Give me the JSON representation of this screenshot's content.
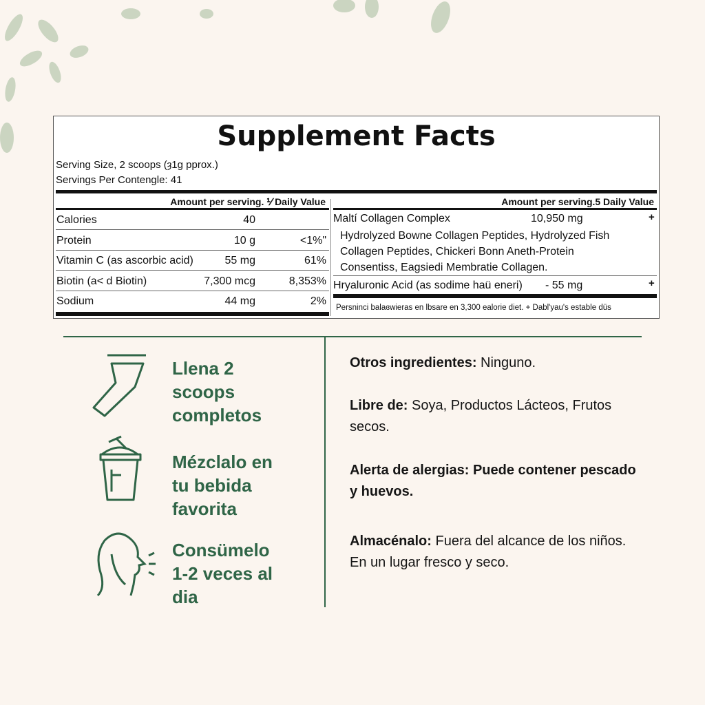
{
  "label": {
    "title": "Supplement Facts",
    "serving_size": "Serving Size, 2 scoops (ȝ1g pprox.)",
    "servings_per": "Servings Per Contengle: 41",
    "left_header": "Amount per serving. ⅟ Daily Value",
    "left_rows": [
      {
        "name": "Calories",
        "amount": "40",
        "dv": ""
      },
      {
        "name": "Protein",
        "amount": "10 g",
        "dv": "<1%\""
      },
      {
        "name": "Vitamin C (as ascorbic acid)",
        "amount": "55 mg",
        "dv": "61%"
      },
      {
        "name": "Biotin (a< d Biotin)",
        "amount": "7,300 mcg",
        "dv": "8,353%"
      },
      {
        "name": "Sodium",
        "amount": "44 mg",
        "dv": "2%"
      }
    ],
    "right_header": "Amount per serving.5 Daily Value",
    "collagen_name": "Maltí Collagen Complex",
    "collagen_amount": "10,950 mg",
    "collagen_dv": "+",
    "collagen_desc": [
      "Hydrolyzed Bowne Collagen Peptides, Hydrolyzed Fish",
      "Collagen Peptides, Chickeri Bonn Aneth-Protein",
      "Consentiss, Eagsiedi Membratie Collagen."
    ],
    "ha_name": "Hryaluronic Acid (as sodime haü eneri)",
    "ha_amount": "- 55 mg",
    "ha_dv": "+",
    "footnote": "Persninci balaɞwieras en lbsare en 3,300 ealorie diet. + Dabl'yau's estable düs"
  },
  "steps": [
    {
      "icon": "scoop-icon",
      "lines": [
        "Llena 2",
        "scoops",
        "completos"
      ]
    },
    {
      "icon": "shaker-icon",
      "lines": [
        "Mézclalo en",
        "tu bebida",
        "favorita"
      ]
    },
    {
      "icon": "person-drinking-icon",
      "lines": [
        "Consümelo",
        "1-2 veces al",
        "dia"
      ]
    }
  ],
  "info": [
    {
      "label": "Otros ingredientes:",
      "text": " Ninguno."
    },
    {
      "label": "Libre de:",
      "text": " Soya, Productos Lácteos, Frutos secos."
    },
    {
      "label": "Alerta de alergias: Puede contener pescado y huevos.",
      "text": ""
    },
    {
      "label": "Almacénalo:",
      "text": " Fuera del alcance de los niños. En un lugar fresco y seco."
    }
  ],
  "colors": {
    "accent": "#2f6547",
    "background": "#fbf5ef"
  }
}
